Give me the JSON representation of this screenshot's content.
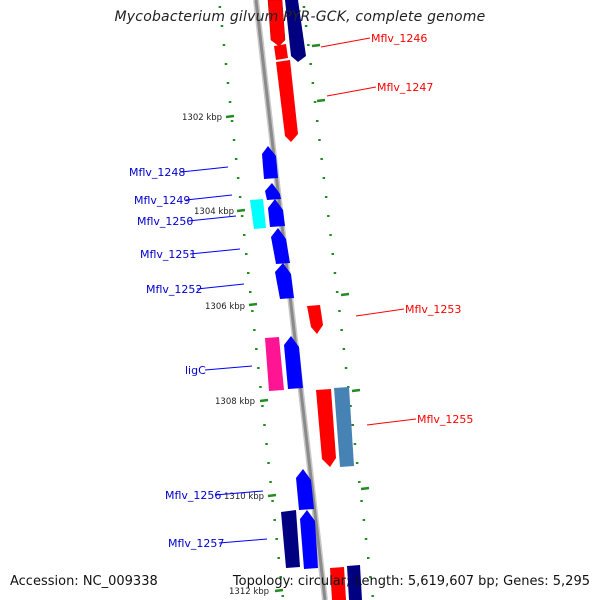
{
  "title": "Mycobacterium gilvum PYR-GCK, complete genome",
  "footer": {
    "accession": "Accession: NC_009338",
    "topology": "Topology: circular; Length: 5,619,607 bp; Genes: 5,295"
  },
  "colors": {
    "forward_strand": "#0000ff",
    "reverse_strand": "#ff0000",
    "dark_blue": "#000080",
    "cyan": "#00ffff",
    "magenta": "#ff1493",
    "steel_blue": "#4682b4",
    "scale_dots": "#228b22",
    "backbone": "#999999"
  },
  "ticks": [
    {
      "label": "1302 kbp"
    },
    {
      "label": "1304 kbp"
    },
    {
      "label": "1306 kbp"
    },
    {
      "label": "1308 kbp"
    },
    {
      "label": "1310 kbp"
    },
    {
      "label": "1312 kbp"
    }
  ],
  "genes": [
    {
      "label": "Mflv_1246",
      "strand": "reverse"
    },
    {
      "label": "Mflv_1247",
      "strand": "reverse"
    },
    {
      "label": "Mflv_1248",
      "strand": "forward"
    },
    {
      "label": "Mflv_1249",
      "strand": "forward"
    },
    {
      "label": "Mflv_1250",
      "strand": "forward"
    },
    {
      "label": "Mflv_1251",
      "strand": "forward"
    },
    {
      "label": "Mflv_1252",
      "strand": "forward"
    },
    {
      "label": "Mflv_1253",
      "strand": "reverse"
    },
    {
      "label": "ligC",
      "strand": "forward"
    },
    {
      "label": "Mflv_1255",
      "strand": "reverse"
    },
    {
      "label": "Mflv_1256",
      "strand": "forward"
    },
    {
      "label": "Mflv_1257",
      "strand": "forward"
    }
  ]
}
